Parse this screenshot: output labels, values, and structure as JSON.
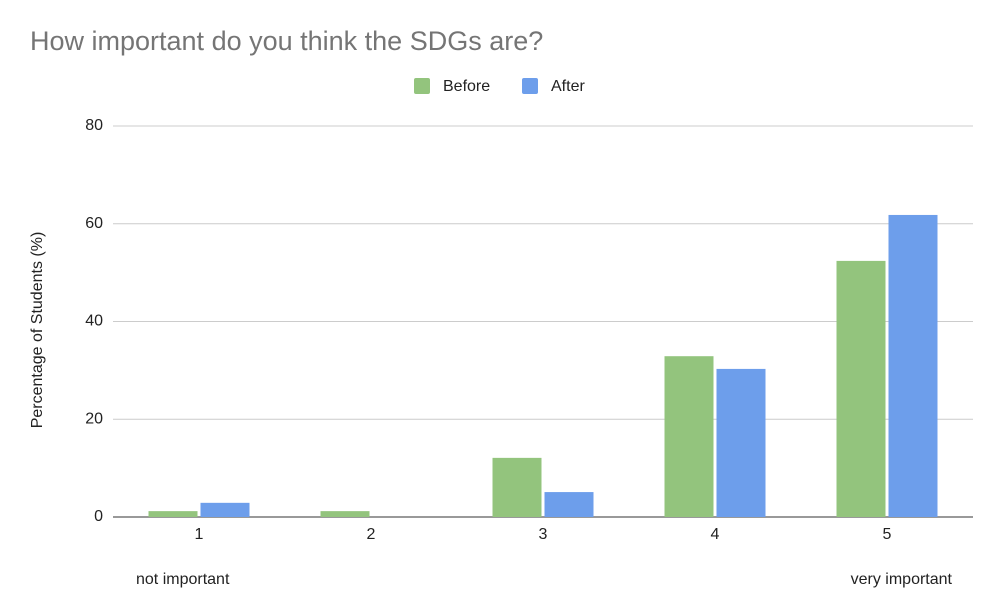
{
  "chart_data": {
    "type": "bar",
    "title": "How important do you think the SDGs are?",
    "y_label": "Percentage of Students (%)",
    "categories": [
      "1",
      "2",
      "3",
      "4",
      "5"
    ],
    "series": [
      {
        "name": "Before",
        "color": "#93c47d",
        "values": [
          1.2,
          1.2,
          12.1,
          32.9,
          52.4
        ]
      },
      {
        "name": "After",
        "color": "#6d9eeb",
        "values": [
          2.9,
          0,
          5.1,
          30.3,
          61.8
        ]
      }
    ],
    "annotations": [
      "not important",
      "very important"
    ],
    "ylim": [
      0,
      80
    ],
    "yticks": [
      0,
      20,
      40,
      60,
      80
    ],
    "grid": true,
    "legend": "top"
  }
}
